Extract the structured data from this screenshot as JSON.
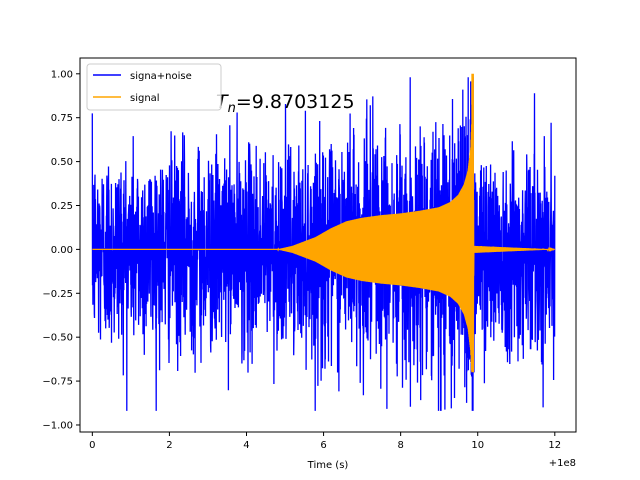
{
  "chart_data": {
    "type": "line",
    "title": "",
    "xlabel": "Time (s)",
    "ylabel": "",
    "x_offset_label": "+1e8",
    "xlim": [
      -0.32,
      12.55
    ],
    "ylim": [
      -1.04,
      1.09
    ],
    "x_ticks": [
      0,
      2,
      4,
      6,
      8,
      10,
      12
    ],
    "x_tick_labels": [
      "0",
      "2",
      "4",
      "6",
      "8",
      "10",
      "12"
    ],
    "y_ticks": [
      -1.0,
      -0.75,
      -0.5,
      -0.25,
      0.0,
      0.25,
      0.5,
      0.75,
      1.0
    ],
    "y_tick_labels": [
      "−1.00",
      "−0.75",
      "−0.50",
      "−0.25",
      "0.00",
      "0.25",
      "0.50",
      "0.75",
      "1.00"
    ],
    "grid": false,
    "legend_position": "top-left",
    "annotation": {
      "var_main": "T",
      "var_sub": "n",
      "value_text": "=9.8703125"
    },
    "series": [
      {
        "name": "signa+noise",
        "color": "#0000ff",
        "x_range": [
          0,
          12.0
        ],
        "noise_amplitude_typical": 0.45,
        "noise_peak_max": 0.98,
        "noise_peak_min": -0.92
      },
      {
        "name": "signal",
        "color": "#ffa500",
        "merger_time": 9.87,
        "peak_high": 1.0,
        "peak_low": -0.7,
        "envelope": [
          [
            0,
            0.0
          ],
          [
            4.8,
            0.0
          ],
          [
            5.2,
            0.02
          ],
          [
            5.8,
            0.07
          ],
          [
            6.2,
            0.12
          ],
          [
            6.6,
            0.16
          ],
          [
            7.0,
            0.18
          ],
          [
            7.5,
            0.195
          ],
          [
            8.0,
            0.205
          ],
          [
            8.5,
            0.22
          ],
          [
            9.0,
            0.24
          ],
          [
            9.3,
            0.27
          ],
          [
            9.5,
            0.31
          ],
          [
            9.65,
            0.37
          ],
          [
            9.75,
            0.45
          ],
          [
            9.82,
            0.58
          ],
          [
            9.86,
            0.8
          ],
          [
            9.87,
            1.0
          ],
          [
            9.9,
            0.02
          ],
          [
            12.0,
            0.0
          ]
        ]
      }
    ]
  }
}
